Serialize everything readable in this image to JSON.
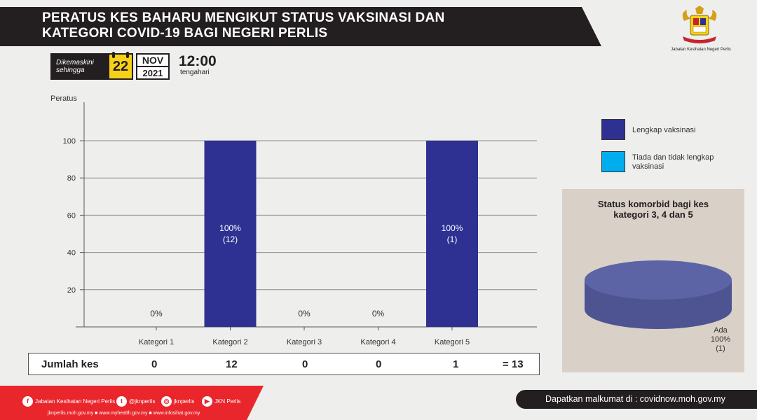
{
  "header": {
    "title": "PERATUS KES BAHARU MENGIKUT STATUS VAKSINASI  DAN\nKATEGORI COVID-19 BAGI NEGERI PERLIS",
    "dept_caption": "Jabatan Kesihatan Negeri Perlis"
  },
  "update": {
    "label_line1": "Dikemaskini",
    "label_line2": "sehingga",
    "day": "22",
    "month": "NOV",
    "year": "2021",
    "time": "12:00",
    "time_sub": "tengahari"
  },
  "chart_data": {
    "type": "bar",
    "ylabel": "Peratus",
    "ylim": [
      0,
      100
    ],
    "yticks": [
      "100",
      "80",
      "60",
      "40",
      "20"
    ],
    "categories": [
      "Kategori 1",
      "Kategori 2",
      "Kategori 3",
      "Kategori 4",
      "Kategori 5"
    ],
    "series": [
      {
        "name": "Lengkap vaksinasi",
        "values": [
          0,
          100,
          0,
          0,
          100
        ],
        "color": "#2e3192"
      },
      {
        "name": "Tiada dan tidak lengkap vaksinasi",
        "values": [
          0,
          0,
          0,
          0,
          0
        ],
        "color": "#00aeef"
      }
    ],
    "bar_labels": [
      "0%",
      "100%",
      "0%",
      "0%",
      "100%"
    ],
    "bar_counts": [
      "",
      "(12)",
      "",
      "",
      "(1)"
    ],
    "grid": true
  },
  "totals": {
    "label": "Jumlah kes",
    "values": [
      "0",
      "12",
      "0",
      "0",
      "1"
    ],
    "total": "= 13"
  },
  "legend": {
    "items": [
      {
        "label": "Lengkap vaksinasi",
        "color": "#2e3192"
      },
      {
        "label": "Tiada dan tidak lengkap vaksinasi",
        "color": "#00aeef"
      }
    ]
  },
  "comorbid": {
    "title": "Status komorbid bagi kes\nkategori 3, 4 dan 5",
    "slice_label": "Ada",
    "slice_percent": "100%",
    "slice_count": "(1)",
    "slice_value": 100,
    "color": "#4e5491"
  },
  "footer": {
    "facebook": "Jabatan Kesihatan Negeri Perlis",
    "twitter": "@jknperlis",
    "instagram": "jknperlis",
    "youtube": "JKN Perlis",
    "websites": "jknperlis.moh.gov.my  ■  www.myhealth.gov.my  ■  www.infosihat.gov.my",
    "info": "Dapatkan malkumat di : covidnow.moh.gov.my"
  }
}
